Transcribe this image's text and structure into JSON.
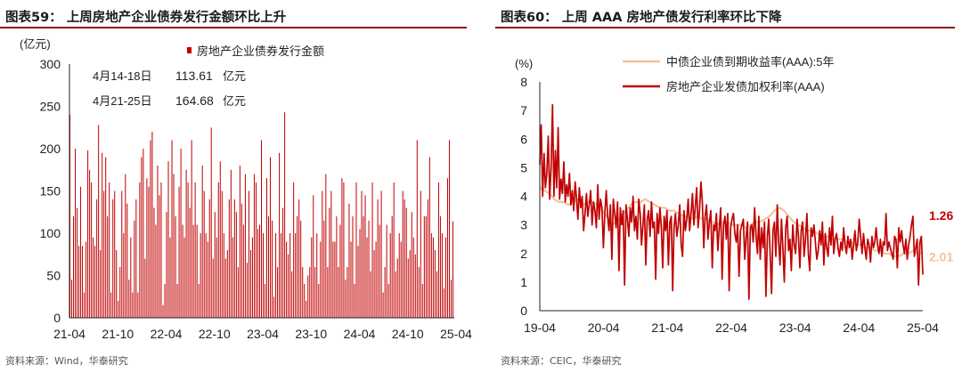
{
  "left": {
    "title": "图表59：  上周房地产企业债券发行金额环比上升",
    "source": "资料来源：Wind，华泰研究",
    "chart_data": {
      "type": "bar",
      "ylabel": "(亿元)",
      "ylim": [
        0,
        300
      ],
      "yticks": [
        "0",
        "50",
        "100",
        "150",
        "200",
        "250",
        "300"
      ],
      "xticks": [
        "21-04",
        "21-10",
        "22-04",
        "22-10",
        "23-04",
        "23-10",
        "24-04",
        "24-10",
        "25-04"
      ],
      "legend": "房地产企业债券发行金额",
      "bar_color": "#c00000",
      "annotations": [
        {
          "label": "4月14-18日",
          "value": "113.61",
          "unit": "亿元"
        },
        {
          "label": "4月21-25日",
          "value": "164.68",
          "unit": "亿元"
        }
      ],
      "series": [
        {
          "values": [
            240,
            45,
            120,
            200,
            130,
            85,
            155,
            85,
            30,
            90,
            198,
            175,
            160,
            95,
            85,
            140,
            228,
            80,
            195,
            150,
            190,
            120,
            160,
            30,
            140,
            150,
            80,
            20,
            60,
            150,
            100,
            170,
            135,
            45,
            95,
            30,
            115,
            140,
            30,
            160,
            190,
            200,
            70,
            165,
            155,
            210,
            220,
            130,
            110,
            180,
            145,
            160,
            15,
            40,
            125,
            185,
            95,
            210,
            170,
            120,
            40,
            155,
            200,
            110,
            95,
            175,
            160,
            130,
            210,
            110,
            160,
            110,
            40,
            100,
            180,
            150,
            100,
            90,
            140,
            225,
            70,
            125,
            95,
            160,
            185,
            150,
            100,
            70,
            80,
            140,
            175,
            95,
            140,
            125,
            60,
            180,
            135,
            110,
            170,
            65,
            150,
            80,
            95,
            170,
            160,
            105,
            110,
            210,
            100,
            40,
            165,
            120,
            190,
            115,
            25,
            100,
            60,
            195,
            100,
            130,
            243,
            90,
            75,
            100,
            55,
            160,
            100,
            120,
            140,
            115,
            60,
            40,
            20,
            50,
            60,
            95,
            145,
            60,
            100,
            40,
            90,
            150,
            115,
            170,
            60,
            130,
            150,
            90,
            90,
            120,
            60,
            110,
            165,
            160,
            45,
            60,
            135,
            90,
            120,
            40,
            160,
            85,
            105,
            150,
            120,
            145,
            95,
            115,
            55,
            160,
            80,
            90,
            140,
            110,
            150,
            30,
            60,
            110,
            40,
            100,
            120,
            160,
            55,
            70,
            100,
            90,
            150,
            140,
            130,
            70,
            80,
            125,
            95,
            75,
            210,
            60,
            150,
            40,
            120,
            120,
            140,
            190,
            100,
            95,
            80,
            55,
            160,
            120,
            100,
            35,
            95,
            165,
            210,
            45,
            114
          ]
        }
      ]
    }
  },
  "right": {
    "title": "图表60：  上周 AAA 房地产债发行利率环比下降",
    "source": "资料来源：CEIC，华泰研究",
    "chart_data": {
      "type": "line",
      "ylabel": "(%)",
      "ylim": [
        0,
        8
      ],
      "yticks": [
        "0",
        "1",
        "2",
        "3",
        "4",
        "5",
        "6",
        "7",
        "8"
      ],
      "xticks": [
        "19-04",
        "20-04",
        "21-04",
        "22-04",
        "23-04",
        "24-04",
        "25-04"
      ],
      "x_range": [
        "2019-04",
        "2025-04"
      ],
      "legend_position": "top-center",
      "series": [
        {
          "name": "中债企业债到期收益率(AAA):5年",
          "color": "#f2c29e",
          "end_label": "2.01",
          "values": [
            4.3,
            4.2,
            4.1,
            3.9,
            3.8,
            3.8,
            3.7,
            3.8,
            3.9,
            3.7,
            3.8,
            3.8,
            3.7,
            3.5,
            3.3,
            3.0,
            3.1,
            3.3,
            3.5,
            3.7,
            3.8,
            3.8,
            3.9,
            3.8,
            3.7,
            3.6,
            3.6,
            3.5,
            3.5,
            3.4,
            3.3,
            3.3,
            3.2,
            3.3,
            3.2,
            3.2,
            3.1,
            3.0,
            3.1,
            3.1,
            3.0,
            3.0,
            3.0,
            2.9,
            3.0,
            3.1,
            3.1,
            3.2,
            3.3,
            3.5,
            3.6,
            3.5,
            3.3,
            3.1,
            3.0,
            2.9,
            2.8,
            2.8,
            2.7,
            2.6,
            2.6,
            2.5,
            2.5,
            2.5,
            2.4,
            2.4,
            2.3,
            2.3,
            2.2,
            2.2,
            2.1,
            2.1,
            2.0,
            2.0,
            1.9,
            1.9,
            2.0,
            2.0,
            2.1,
            2.0,
            2.01
          ]
        },
        {
          "name": "房地产企业发债加权利率(AAA)",
          "color": "#c00000",
          "end_label": "1.26",
          "values": [
            5.1,
            6.5,
            4.0,
            5.5,
            4.3,
            4.8,
            6.1,
            3.9,
            5.0,
            7.2,
            4.0,
            5.6,
            4.3,
            6.4,
            3.9,
            4.6,
            4.1,
            5.2,
            3.8,
            4.4,
            4.0,
            4.8,
            3.7,
            4.2,
            3.5,
            4.5,
            3.9,
            3.2,
            4.3,
            3.6,
            4.0,
            2.8,
            3.4,
            4.1,
            3.3,
            3.7,
            4.2,
            3.0,
            3.8,
            3.5,
            2.9,
            4.4,
            3.2,
            3.9,
            3.6,
            2.2,
            3.4,
            4.2,
            3.3,
            2.8,
            3.7,
            1.8,
            3.9,
            3.4,
            2.9,
            3.8,
            1.4,
            3.6,
            3.0,
            3.5,
            0.9,
            3.7,
            3.2,
            2.6,
            3.6,
            3.1,
            4.0,
            2.8,
            3.3,
            2.5,
            3.9,
            3.4,
            2.3,
            3.0,
            3.7,
            1.6,
            3.2,
            3.5,
            2.6,
            3.8,
            2.9,
            3.1,
            1.1,
            3.4,
            2.7,
            3.6,
            2.9,
            1.5,
            3.3,
            2.8,
            3.5,
            1.6,
            3.1,
            3.3,
            0.7,
            2.9,
            3.4,
            2.6,
            3.0,
            3.7,
            2.3,
            1.9,
            3.5,
            2.8,
            3.2,
            3.9,
            2.8,
            3.4,
            4.1,
            3.0,
            3.6,
            4.3,
            2.9,
            3.5,
            4.5,
            3.8,
            2.2,
            3.3,
            3.7,
            2.5,
            3.1,
            3.5,
            1.5,
            3.0,
            2.8,
            3.4,
            2.1,
            2.9,
            3.6,
            1.1,
            3.0,
            3.3,
            2.5,
            3.4,
            0.7,
            2.9,
            3.2,
            3.4,
            2.7,
            2.4,
            3.0,
            1.2,
            2.8,
            3.0,
            3.2,
            1.8,
            2.6,
            3.1,
            0.4,
            2.9,
            3.0,
            2.4,
            3.6,
            2.6,
            2.0,
            3.3,
            1.8,
            2.9,
            2.2,
            3.1,
            0.5,
            2.6,
            3.2,
            2.0,
            0.6,
            2.8,
            3.1,
            1.9,
            3.7,
            2.4,
            1.6,
            3.2,
            2.2,
            1.0,
            2.9,
            3.3,
            2.1,
            2.5,
            1.4,
            3.0,
            2.3,
            2.0,
            3.2,
            2.6,
            1.5,
            2.8,
            3.1,
            1.9,
            2.5,
            3.4,
            2.0,
            1.4,
            2.9,
            2.6,
            3.0,
            2.4,
            1.8,
            2.1,
            2.8,
            2.3,
            3.1,
            1.6,
            2.7,
            2.2,
            1.9,
            2.9,
            2.3,
            3.3,
            2.0,
            2.5,
            2.7,
            2.2,
            1.9,
            2.4,
            2.1,
            2.9,
            2.3,
            2.0,
            2.6,
            2.2,
            2.5,
            1.8,
            2.3,
            2.8,
            2.1,
            2.4,
            3.2,
            2.6,
            2.0,
            2.7,
            2.2,
            1.8,
            2.5,
            2.3,
            1.7,
            2.6,
            2.2,
            2.4,
            2.9,
            2.3,
            2.0,
            2.5,
            1.9,
            2.4,
            2.3,
            3.4,
            2.1,
            2.4,
            2.2,
            2.0,
            1.8,
            2.6,
            2.5,
            1.5,
            2.9,
            2.4,
            2.8,
            2.3,
            2.0,
            2.5,
            1.8,
            2.3,
            2.6,
            3.0,
            3.3,
            1.9,
            2.2,
            2.5,
            0.9,
            2.4,
            2.6,
            1.26
          ]
        }
      ]
    }
  }
}
